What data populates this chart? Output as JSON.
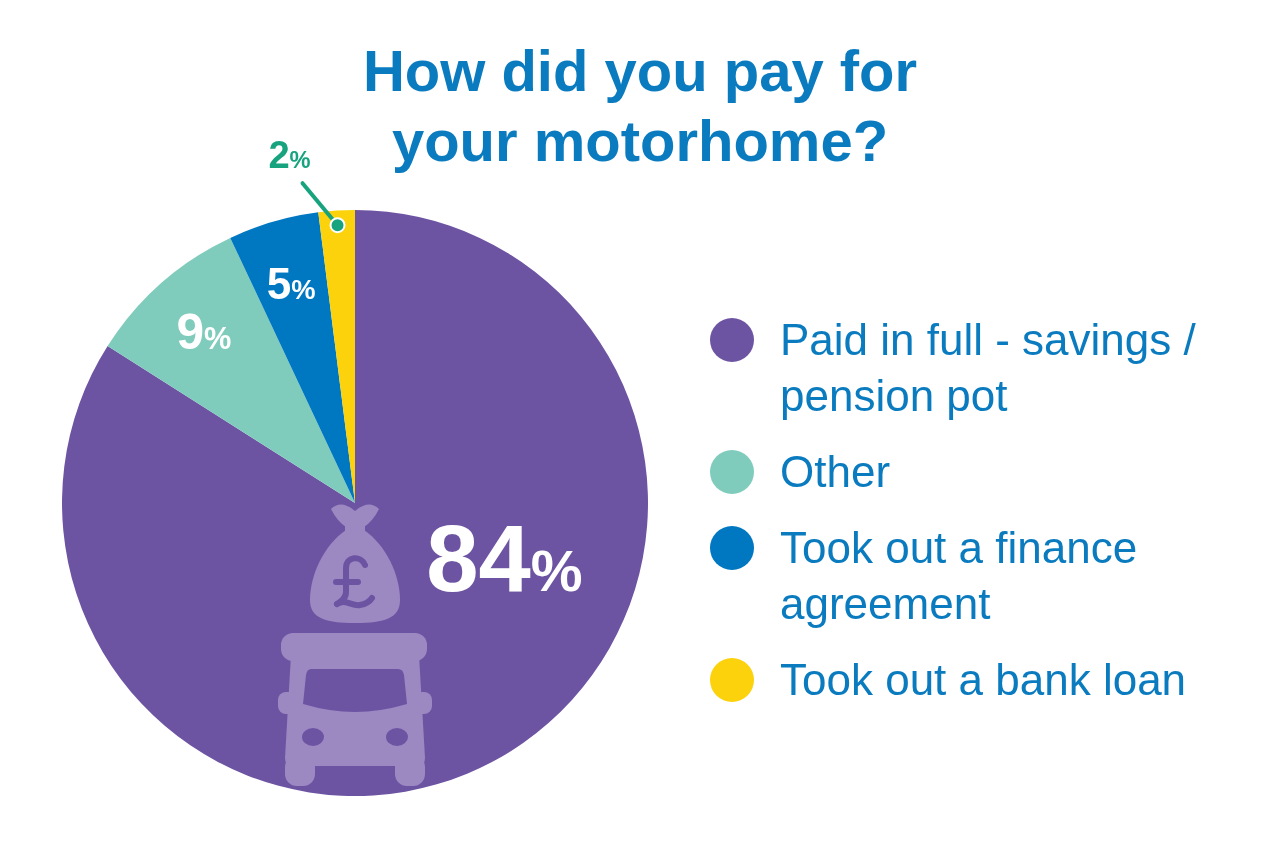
{
  "chart_data": {
    "type": "pie",
    "title": "How did you pay for your motorhome?",
    "categories": [
      "Paid in full - savings / pension pot",
      "Other",
      "Took out a finance agreement",
      "Took out a bank loan"
    ],
    "values": [
      84,
      9,
      5,
      2
    ],
    "colors": [
      "#6d54a3",
      "#80ccbc",
      "#0077c1",
      "#fbd20b"
    ],
    "value_labels": [
      "84%",
      "9%",
      "5%",
      "2%"
    ],
    "legend": "right"
  }
}
